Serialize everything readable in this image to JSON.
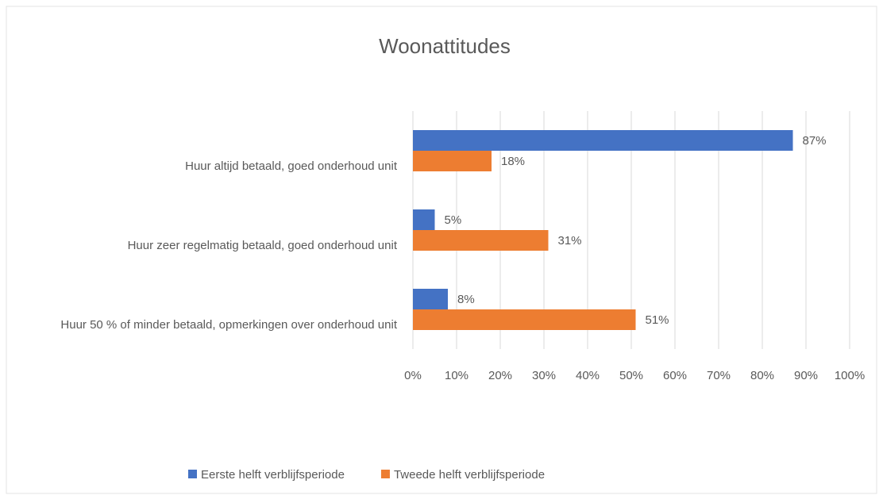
{
  "chart_data": {
    "type": "hbar",
    "title": "Woonattitudes",
    "categories": [
      "Huur altijd betaald, goed onderhoud unit",
      "Huur zeer regelmatig betaald, goed onderhoud unit",
      "Huur 50 % of minder betaald, opmerkingen over onderhoud unit"
    ],
    "series": [
      {
        "name": "Eerste helft verblijfsperiode",
        "color": "#4472c4",
        "values": [
          87,
          5,
          8
        ],
        "value_labels": [
          "87%",
          "5%",
          "8%"
        ]
      },
      {
        "name": "Tweede helft verblijfsperiode",
        "color": "#ed7d31",
        "values": [
          18,
          31,
          51
        ],
        "value_labels": [
          "18%",
          "31%",
          "51%"
        ]
      }
    ],
    "xlim": [
      0,
      100
    ],
    "xticks": [
      {
        "value": 0,
        "label": "0%"
      },
      {
        "value": 10,
        "label": "10%"
      },
      {
        "value": 20,
        "label": "20%"
      },
      {
        "value": 30,
        "label": "30%"
      },
      {
        "value": 40,
        "label": "40%"
      },
      {
        "value": 50,
        "label": "50%"
      },
      {
        "value": 60,
        "label": "60%"
      },
      {
        "value": 70,
        "label": "70%"
      },
      {
        "value": 80,
        "label": "80%"
      },
      {
        "value": 90,
        "label": "90%"
      },
      {
        "value": 100,
        "label": "100%"
      }
    ],
    "grid": true,
    "legend": "bottom"
  }
}
